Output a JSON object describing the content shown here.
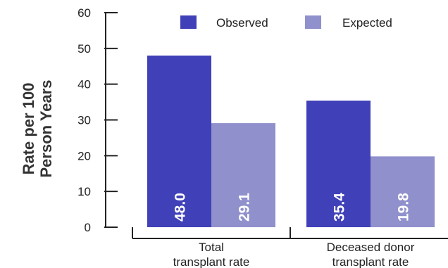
{
  "chart_data": {
    "type": "bar",
    "ylabel": [
      "Rate per 100",
      "Person Years"
    ],
    "categories": [
      [
        "Total",
        "transplant rate"
      ],
      [
        "Deceased donor",
        "transplant rate"
      ]
    ],
    "series": [
      {
        "name": "Observed",
        "values": [
          48.0,
          35.4
        ],
        "labels": [
          "48.0",
          "35.4"
        ],
        "color": "#4040b8"
      },
      {
        "name": "Expected",
        "values": [
          29.1,
          19.8
        ],
        "labels": [
          "29.1",
          "19.8"
        ],
        "color": "#9090cc"
      }
    ],
    "ylim": [
      0,
      60
    ],
    "yticks": [
      0,
      10,
      20,
      30,
      40,
      50,
      60
    ],
    "legend": "top-right",
    "grid": false
  }
}
